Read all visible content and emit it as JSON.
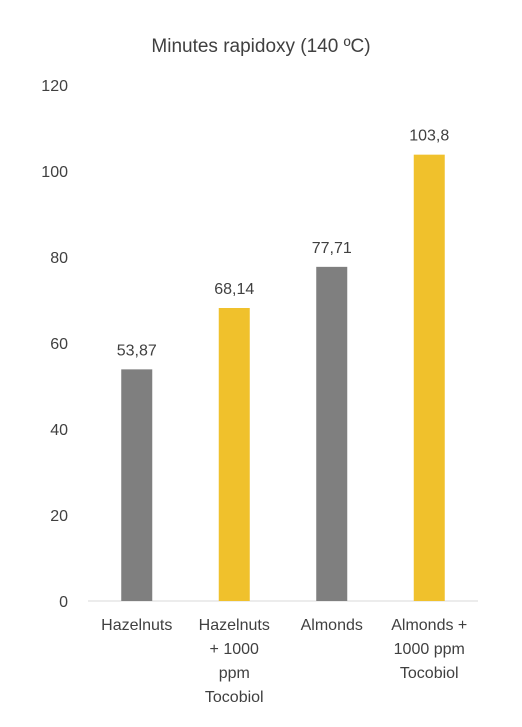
{
  "chart_data": {
    "type": "bar",
    "title": "Minutes rapidoxy (140 ºC)",
    "categories": [
      [
        "Hazelnuts"
      ],
      [
        "Hazelnuts",
        "+ 1000",
        "ppm",
        "Tocobiol"
      ],
      [
        "Almonds"
      ],
      [
        "Almonds +",
        "1000 ppm",
        "Tocobiol"
      ]
    ],
    "values": [
      53.87,
      68.14,
      77.71,
      103.8
    ],
    "data_labels": [
      "53,87",
      "68,14",
      "77,71",
      "103,8"
    ],
    "bar_colors": [
      "#7f7f7f",
      "#f0c12c",
      "#7f7f7f",
      "#f0c12c"
    ],
    "ylim": [
      0,
      120
    ],
    "yticks": [
      0,
      20,
      40,
      60,
      80,
      100,
      120
    ],
    "grid": false,
    "legend": "none",
    "axis_color": "#d9d9d9"
  }
}
